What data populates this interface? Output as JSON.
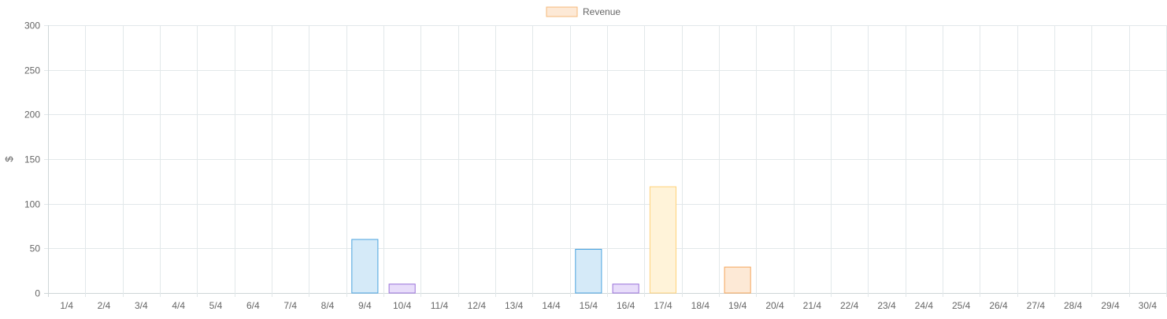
{
  "chart_data": {
    "type": "bar",
    "legend": {
      "position": "top",
      "label": "Revenue",
      "fill": "#fde9d6",
      "stroke": "#f5b97a"
    },
    "ylabel": "$",
    "ylim": [
      0,
      300
    ],
    "yticks": [
      0,
      50,
      100,
      150,
      200,
      250,
      300
    ],
    "grid": true,
    "categories": [
      "1/4",
      "2/4",
      "3/4",
      "4/4",
      "5/4",
      "6/4",
      "7/4",
      "8/4",
      "9/4",
      "10/4",
      "11/4",
      "12/4",
      "13/4",
      "14/4",
      "15/4",
      "16/4",
      "17/4",
      "18/4",
      "19/4",
      "20/4",
      "21/4",
      "22/4",
      "23/4",
      "24/4",
      "25/4",
      "26/4",
      "27/4",
      "28/4",
      "29/4",
      "30/4"
    ],
    "series": [
      {
        "name": "Revenue",
        "values": [
          0,
          0,
          0,
          0,
          0,
          0,
          0,
          0,
          60,
          10,
          0,
          0,
          0,
          0,
          49,
          10,
          119,
          0,
          29,
          0,
          0,
          0,
          0,
          0,
          0,
          0,
          0,
          0,
          0,
          0
        ]
      }
    ],
    "bar_colors": [
      {
        "fill": "#d5eaf8",
        "stroke": "#4aa3df"
      },
      {
        "fill": "#e8ddfa",
        "stroke": "#9b72d9"
      },
      {
        "fill": "#fff3d9",
        "stroke": "#ffd37a"
      },
      {
        "fill": "#fde9d6",
        "stroke": "#f5a55a"
      }
    ],
    "bar_color_index": [
      null,
      null,
      null,
      null,
      null,
      null,
      null,
      null,
      0,
      1,
      null,
      null,
      null,
      null,
      0,
      1,
      2,
      null,
      3,
      null,
      null,
      null,
      null,
      null,
      null,
      null,
      null,
      null,
      null,
      null
    ],
    "grid_color": "#e2e8ea",
    "axis_color": "#cfd6d8"
  }
}
